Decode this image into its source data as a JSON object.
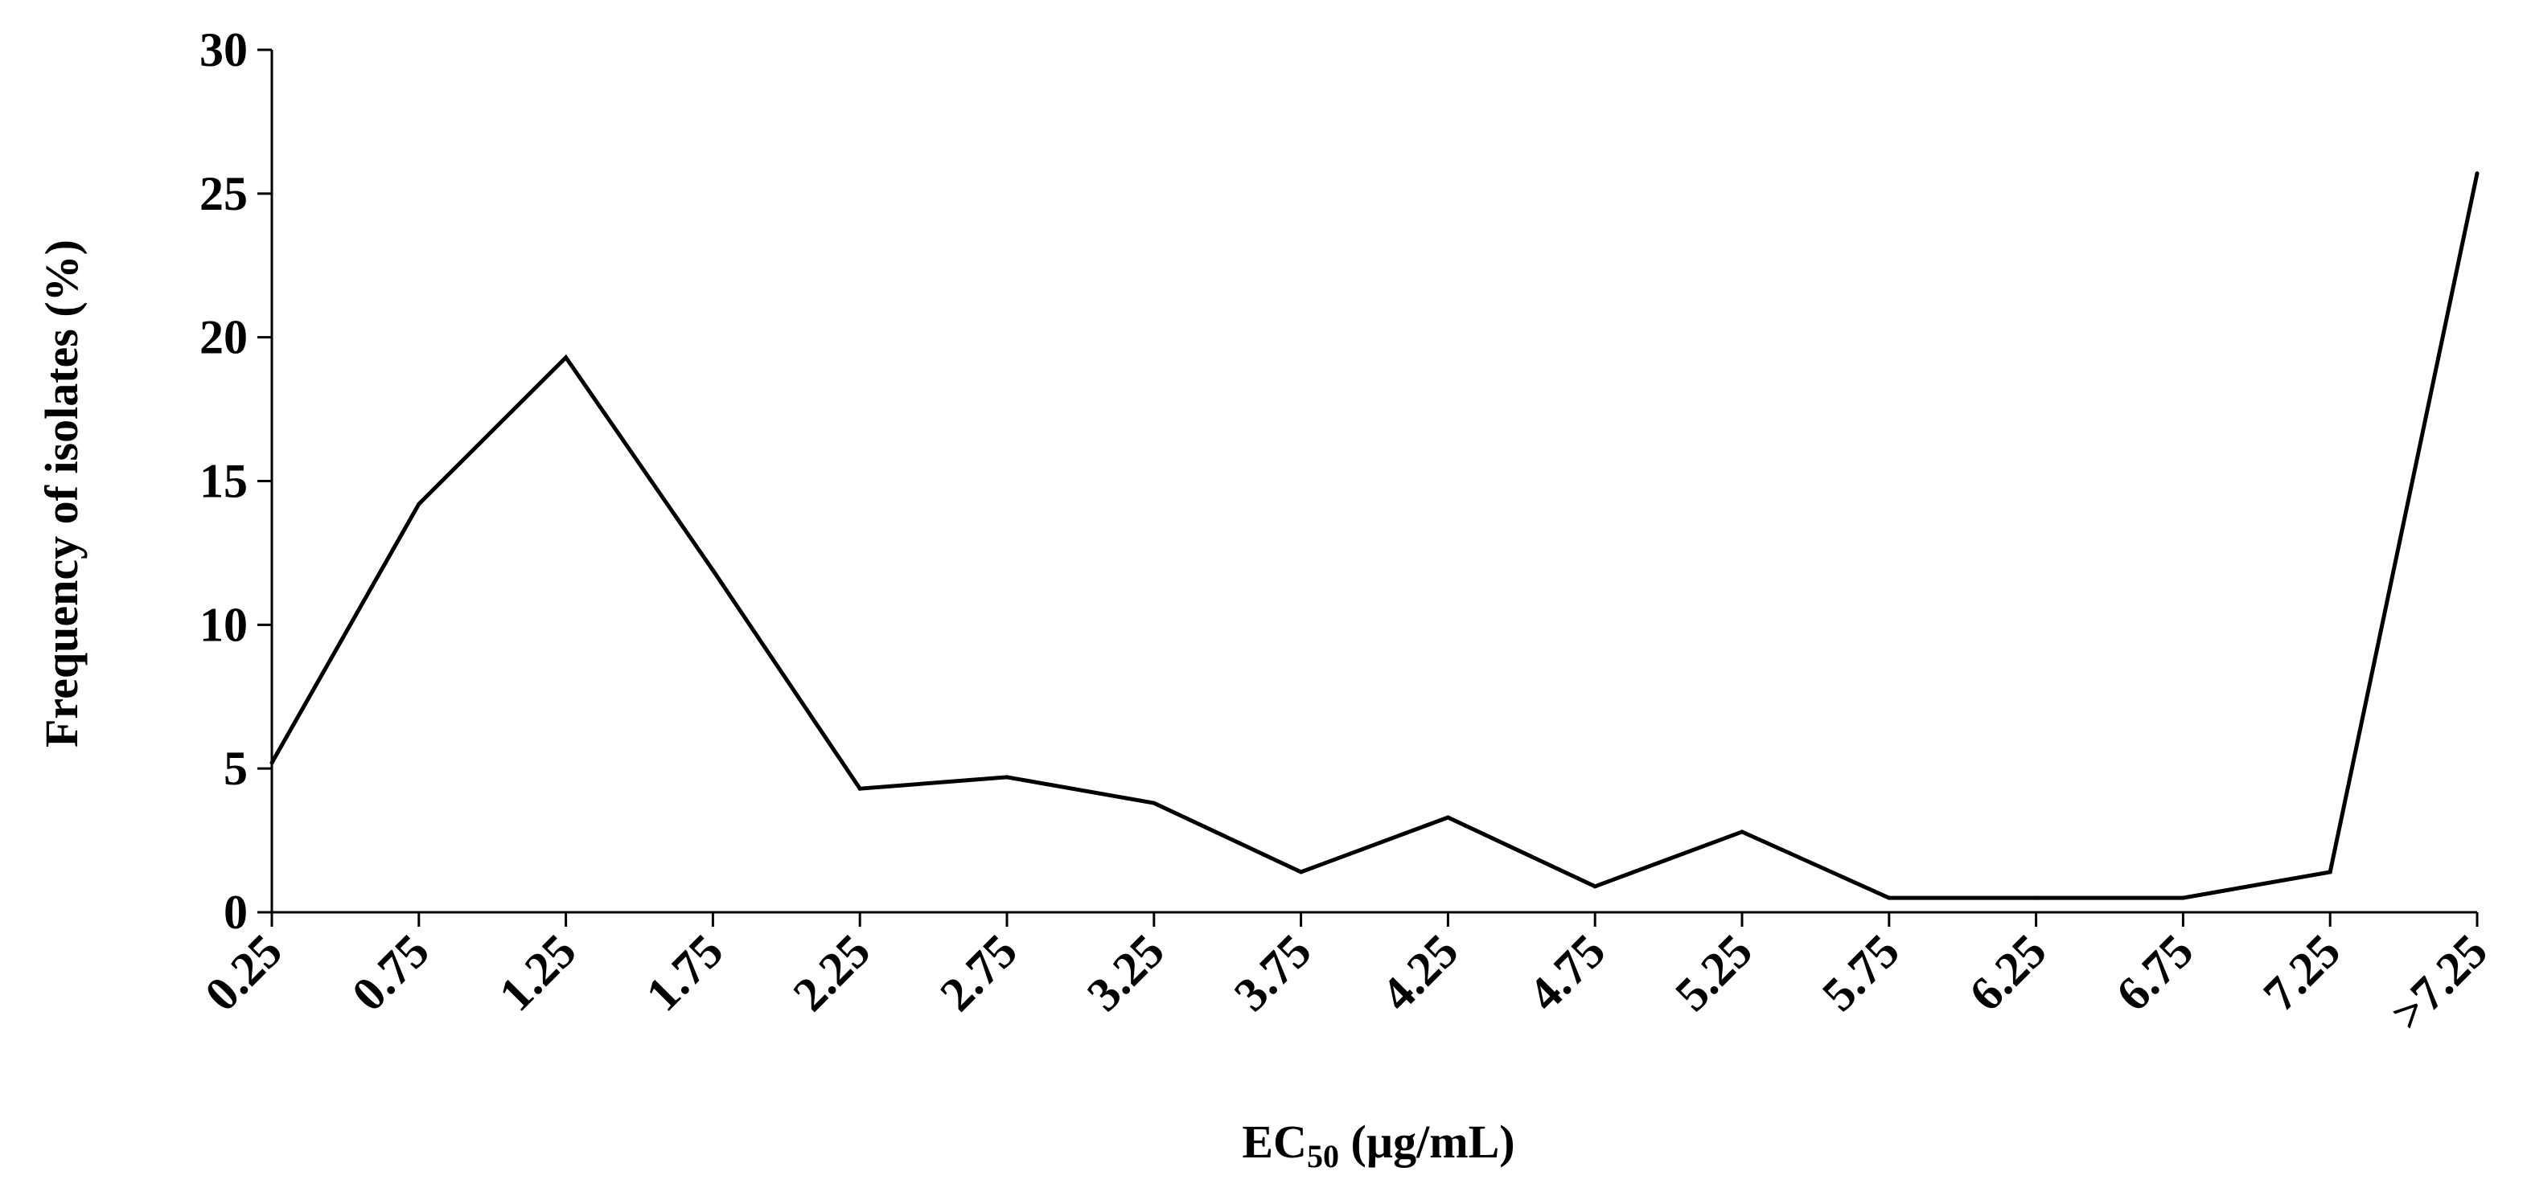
{
  "chart_data": {
    "type": "line",
    "title": "",
    "xlabel": "EC",
    "xlabel_sub": "50",
    "xlabel_unit": " (µg/mL)",
    "ylabel": "Frequency of isolates (%)",
    "ylim": [
      0,
      30
    ],
    "yticks": [
      "0",
      "5",
      "10",
      "15",
      "20",
      "25",
      "30"
    ],
    "categories": [
      "0.25",
      "0.75",
      "1.25",
      "1.75",
      "2.25",
      "2.75",
      "3.25",
      "3.75",
      "4.25",
      "4.75",
      "5.25",
      "5.75",
      "6.25",
      "6.75",
      "7.25",
      ">7.25"
    ],
    "series": [
      {
        "values": [
          5.2,
          14.2,
          19.3,
          11.9,
          4.3,
          4.7,
          3.8,
          1.4,
          3.3,
          0.9,
          2.8,
          0.5,
          0.5,
          0.5,
          1.4,
          25.7
        ],
        "color": "#000000"
      }
    ],
    "grid": false,
    "legend": "none"
  }
}
